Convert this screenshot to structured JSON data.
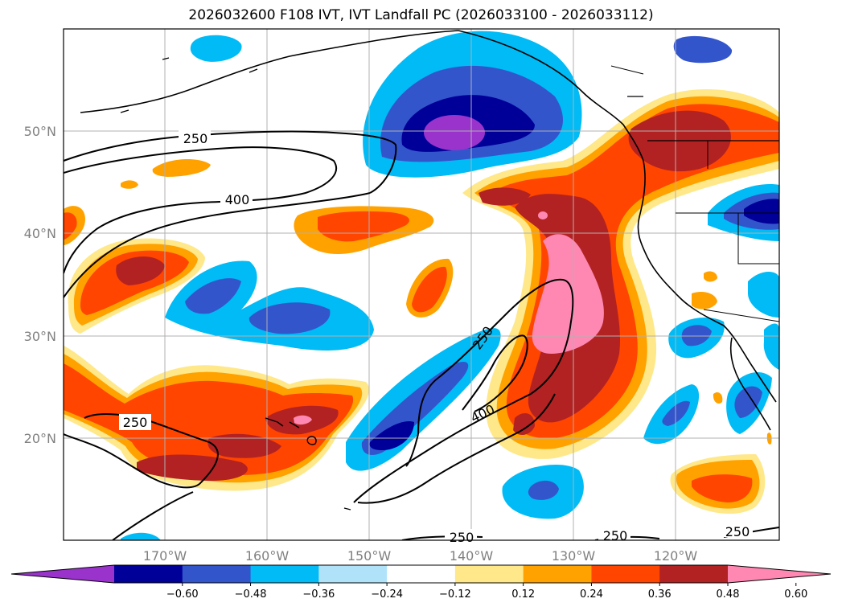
{
  "title": "2026032600 F108 IVT, IVT Landfall PC (2026033100 - 2026033112)",
  "lat_ticks": [
    {
      "label": "50°N",
      "value": 50
    },
    {
      "label": "40°N",
      "value": 40
    },
    {
      "label": "30°N",
      "value": 30
    },
    {
      "label": "20°N",
      "value": 20
    }
  ],
  "lon_ticks": [
    {
      "label": "170°W",
      "value": -170
    },
    {
      "label": "160°W",
      "value": -160
    },
    {
      "label": "150°W",
      "value": -150
    },
    {
      "label": "140°W",
      "value": -140
    },
    {
      "label": "130°W",
      "value": -130
    },
    {
      "label": "120°W",
      "value": -120
    }
  ],
  "contour_labels": {
    "north_250": "250",
    "north_400": "400",
    "west_250": "250",
    "center_250": "250",
    "center_400": "400",
    "south_250_a": "250",
    "south_250_b": "250",
    "south_250_c": "250"
  },
  "colorbar": {
    "colors": [
      "#9933cc",
      "#000099",
      "#3355cc",
      "#00bbf5",
      "#b0e2fa",
      "#ffffff",
      "#ffe88a",
      "#ffa200",
      "#ff4500",
      "#b22222",
      "#ff88b2"
    ],
    "tick_labels": [
      "−0.60",
      "−0.48",
      "−0.36",
      "−0.24",
      "−0.12",
      "0.12",
      "0.24",
      "0.36",
      "0.48",
      "0.60"
    ]
  }
}
